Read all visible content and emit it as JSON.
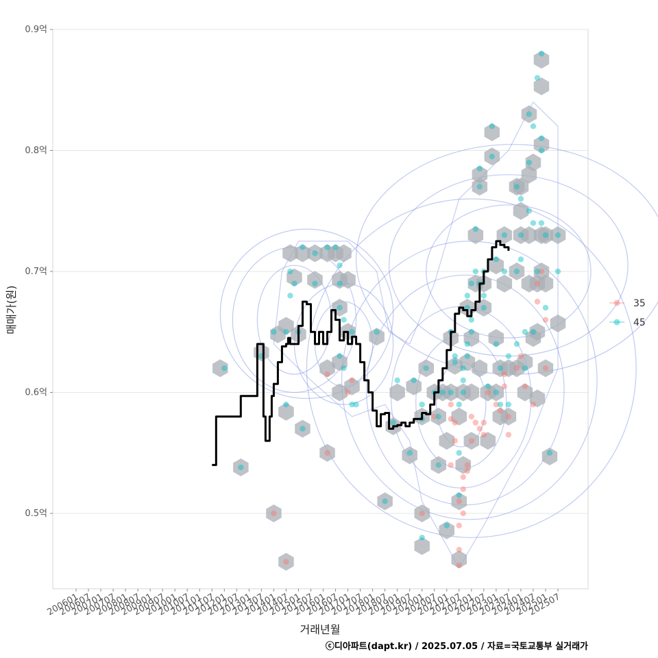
{
  "chart_data": {
    "type": "scatter",
    "xlabel": "거래년월",
    "ylabel": "매매가(원)",
    "caption": "ⓒ디아파트(dapt.kr) / 2025.07.05 / 자료=국토교통부 실거래가",
    "x_ticks": [
      "200601",
      "200607",
      "200701",
      "200707",
      "200801",
      "200807",
      "200901",
      "200907",
      "201001",
      "201007",
      "201101",
      "201107",
      "201201",
      "201207",
      "201301",
      "201307",
      "201401",
      "201407",
      "201501",
      "201507",
      "201601",
      "201607",
      "201701",
      "201707",
      "201801",
      "201807",
      "201901",
      "201907",
      "202001",
      "202007",
      "202101",
      "202107",
      "202201",
      "202207",
      "202301",
      "202307",
      "202401",
      "202407",
      "202501",
      "202507"
    ],
    "y_ticks": [
      0.5,
      0.6,
      0.7,
      0.8,
      0.9
    ],
    "y_tick_labels": [
      "0.5억",
      "0.6억",
      "0.7억",
      "0.8억",
      "0.9억"
    ],
    "ylim": [
      0.4535,
      0.9
    ],
    "grid": true,
    "legend": {
      "position": "right",
      "entries": [
        {
          "label": "35",
          "color": "#F8766D"
        },
        {
          "label": "45",
          "color": "#00BFC4"
        }
      ]
    },
    "colors": {
      "hexbin": "#A9AFB5",
      "contour": "#8C9EE6",
      "trend": "#000000"
    },
    "hexbins": [
      [
        201111,
        0.62
      ],
      [
        201209,
        0.538
      ],
      [
        201307,
        0.633
      ],
      [
        201401,
        0.5
      ],
      [
        201403,
        0.648
      ],
      [
        201407,
        0.46
      ],
      [
        201407,
        0.584
      ],
      [
        201407,
        0.655
      ],
      [
        201409,
        0.715
      ],
      [
        201411,
        0.695
      ],
      [
        201501,
        0.648
      ],
      [
        201503,
        0.715
      ],
      [
        201503,
        0.57
      ],
      [
        201509,
        0.693
      ],
      [
        201509,
        0.715
      ],
      [
        201603,
        0.55
      ],
      [
        201603,
        0.62
      ],
      [
        201603,
        0.715
      ],
      [
        201607,
        0.715
      ],
      [
        201609,
        0.693
      ],
      [
        201609,
        0.67
      ],
      [
        201609,
        0.6
      ],
      [
        201609,
        0.625
      ],
      [
        201611,
        0.715
      ],
      [
        201701,
        0.693
      ],
      [
        201701,
        0.65
      ],
      [
        201703,
        0.605
      ],
      [
        201803,
        0.646
      ],
      [
        201807,
        0.51
      ],
      [
        201811,
        0.572
      ],
      [
        201901,
        0.6
      ],
      [
        201907,
        0.548
      ],
      [
        201909,
        0.605
      ],
      [
        202001,
        0.473
      ],
      [
        202001,
        0.5
      ],
      [
        202001,
        0.58
      ],
      [
        202003,
        0.62
      ],
      [
        202007,
        0.6
      ],
      [
        202009,
        0.54
      ],
      [
        202009,
        0.58
      ],
      [
        202011,
        0.6
      ],
      [
        202101,
        0.486
      ],
      [
        202101,
        0.56
      ],
      [
        202103,
        0.6
      ],
      [
        202103,
        0.645
      ],
      [
        202105,
        0.622
      ],
      [
        202107,
        0.462
      ],
      [
        202107,
        0.51
      ],
      [
        202107,
        0.58
      ],
      [
        202109,
        0.54
      ],
      [
        202109,
        0.6
      ],
      [
        202111,
        0.625
      ],
      [
        202111,
        0.67
      ],
      [
        202201,
        0.56
      ],
      [
        202201,
        0.6
      ],
      [
        202201,
        0.645
      ],
      [
        202203,
        0.69
      ],
      [
        202203,
        0.73
      ],
      [
        202205,
        0.78
      ],
      [
        202205,
        0.77
      ],
      [
        202205,
        0.62
      ],
      [
        202207,
        0.69
      ],
      [
        202207,
        0.67
      ],
      [
        202209,
        0.56
      ],
      [
        202209,
        0.6
      ],
      [
        202211,
        0.795
      ],
      [
        202211,
        0.815
      ],
      [
        202301,
        0.705
      ],
      [
        202301,
        0.645
      ],
      [
        202301,
        0.6
      ],
      [
        202303,
        0.58
      ],
      [
        202303,
        0.62
      ],
      [
        202305,
        0.73
      ],
      [
        202305,
        0.69
      ],
      [
        202307,
        0.62
      ],
      [
        202307,
        0.58
      ],
      [
        202311,
        0.77
      ],
      [
        202311,
        0.7
      ],
      [
        202311,
        0.62
      ],
      [
        202401,
        0.73
      ],
      [
        202401,
        0.75
      ],
      [
        202401,
        0.77
      ],
      [
        202403,
        0.6
      ],
      [
        202403,
        0.625
      ],
      [
        202405,
        0.83
      ],
      [
        202405,
        0.78
      ],
      [
        202405,
        0.73
      ],
      [
        202405,
        0.69
      ],
      [
        202407,
        0.645
      ],
      [
        202407,
        0.79
      ],
      [
        202409,
        0.595
      ],
      [
        202409,
        0.65
      ],
      [
        202409,
        0.69
      ],
      [
        202411,
        0.875
      ],
      [
        202411,
        0.853
      ],
      [
        202411,
        0.805
      ],
      [
        202411,
        0.73
      ],
      [
        202411,
        0.7
      ],
      [
        202501,
        0.73
      ],
      [
        202501,
        0.69
      ],
      [
        202501,
        0.62
      ],
      [
        202503,
        0.547
      ],
      [
        202507,
        0.73
      ],
      [
        202507,
        0.657
      ]
    ],
    "series": [
      {
        "name": "35",
        "points": [
          [
            201401,
            0.5
          ],
          [
            201407,
            0.46
          ],
          [
            201603,
            0.55
          ],
          [
            201603,
            0.615
          ],
          [
            201701,
            0.6
          ],
          [
            201703,
            0.61
          ],
          [
            202001,
            0.5
          ],
          [
            202007,
            0.58
          ],
          [
            202103,
            0.59
          ],
          [
            202103,
            0.578
          ],
          [
            202105,
            0.56
          ],
          [
            202105,
            0.575
          ],
          [
            202107,
            0.47
          ],
          [
            202107,
            0.49
          ],
          [
            202107,
            0.457
          ],
          [
            202107,
            0.51
          ],
          [
            202109,
            0.53
          ],
          [
            202109,
            0.52
          ],
          [
            202109,
            0.5
          ],
          [
            202111,
            0.54
          ],
          [
            202111,
            0.535
          ],
          [
            202201,
            0.56
          ],
          [
            202203,
            0.575
          ],
          [
            202205,
            0.57
          ],
          [
            202207,
            0.565
          ],
          [
            202209,
            0.6
          ],
          [
            202301,
            0.59
          ],
          [
            202303,
            0.585
          ],
          [
            202305,
            0.615
          ],
          [
            202305,
            0.605
          ],
          [
            202307,
            0.58
          ],
          [
            202311,
            0.62
          ],
          [
            202401,
            0.63
          ],
          [
            202403,
            0.605
          ],
          [
            202407,
            0.59
          ],
          [
            202409,
            0.69
          ],
          [
            202409,
            0.675
          ],
          [
            202411,
            0.7
          ],
          [
            202501,
            0.66
          ],
          [
            202501,
            0.62
          ],
          [
            202307,
            0.565
          ],
          [
            202207,
            0.575
          ],
          [
            202201,
            0.58
          ],
          [
            202103,
            0.54
          ]
        ]
      },
      {
        "name": "45",
        "points": [
          [
            201201,
            0.62
          ],
          [
            201209,
            0.538
          ],
          [
            201307,
            0.63
          ],
          [
            201401,
            0.65
          ],
          [
            201407,
            0.59
          ],
          [
            201407,
            0.65
          ],
          [
            201409,
            0.7
          ],
          [
            201409,
            0.68
          ],
          [
            201411,
            0.69
          ],
          [
            201501,
            0.65
          ],
          [
            201503,
            0.72
          ],
          [
            201503,
            0.57
          ],
          [
            201509,
            0.69
          ],
          [
            201509,
            0.715
          ],
          [
            201603,
            0.72
          ],
          [
            201607,
            0.72
          ],
          [
            201609,
            0.705
          ],
          [
            201609,
            0.69
          ],
          [
            201609,
            0.67
          ],
          [
            201609,
            0.63
          ],
          [
            201611,
            0.66
          ],
          [
            201611,
            0.62
          ],
          [
            201703,
            0.65
          ],
          [
            201703,
            0.59
          ],
          [
            201705,
            0.59
          ],
          [
            201803,
            0.65
          ],
          [
            201807,
            0.51
          ],
          [
            201811,
            0.575
          ],
          [
            201901,
            0.61
          ],
          [
            201907,
            0.55
          ],
          [
            201909,
            0.61
          ],
          [
            202001,
            0.48
          ],
          [
            202001,
            0.59
          ],
          [
            202001,
            0.578
          ],
          [
            202003,
            0.62
          ],
          [
            202007,
            0.6
          ],
          [
            202009,
            0.54
          ],
          [
            202009,
            0.58
          ],
          [
            202011,
            0.6
          ],
          [
            202101,
            0.49
          ],
          [
            202103,
            0.6
          ],
          [
            202103,
            0.65
          ],
          [
            202105,
            0.625
          ],
          [
            202105,
            0.63
          ],
          [
            202107,
            0.515
          ],
          [
            202107,
            0.55
          ],
          [
            202107,
            0.59
          ],
          [
            202109,
            0.6
          ],
          [
            202109,
            0.61
          ],
          [
            202109,
            0.62
          ],
          [
            202111,
            0.63
          ],
          [
            202111,
            0.64
          ],
          [
            202111,
            0.67
          ],
          [
            202111,
            0.68
          ],
          [
            202201,
            0.66
          ],
          [
            202201,
            0.65
          ],
          [
            202201,
            0.69
          ],
          [
            202203,
            0.7
          ],
          [
            202203,
            0.735
          ],
          [
            202205,
            0.77
          ],
          [
            202205,
            0.785
          ],
          [
            202205,
            0.69
          ],
          [
            202207,
            0.7
          ],
          [
            202207,
            0.68
          ],
          [
            202207,
            0.67
          ],
          [
            202209,
            0.605
          ],
          [
            202211,
            0.795
          ],
          [
            202211,
            0.82
          ],
          [
            202301,
            0.71
          ],
          [
            202301,
            0.64
          ],
          [
            202301,
            0.6
          ],
          [
            202303,
            0.62
          ],
          [
            202303,
            0.59
          ],
          [
            202305,
            0.73
          ],
          [
            202305,
            0.7
          ],
          [
            202307,
            0.63
          ],
          [
            202307,
            0.59
          ],
          [
            202311,
            0.77
          ],
          [
            202311,
            0.7
          ],
          [
            202311,
            0.64
          ],
          [
            202401,
            0.76
          ],
          [
            202401,
            0.73
          ],
          [
            202401,
            0.71
          ],
          [
            202403,
            0.65
          ],
          [
            202403,
            0.62
          ],
          [
            202405,
            0.83
          ],
          [
            202405,
            0.79
          ],
          [
            202405,
            0.75
          ],
          [
            202407,
            0.82
          ],
          [
            202407,
            0.65
          ],
          [
            202407,
            0.74
          ],
          [
            202409,
            0.86
          ],
          [
            202409,
            0.7
          ],
          [
            202411,
            0.88
          ],
          [
            202411,
            0.81
          ],
          [
            202411,
            0.8
          ],
          [
            202411,
            0.74
          ],
          [
            202501,
            0.73
          ],
          [
            202501,
            0.67
          ],
          [
            202503,
            0.55
          ],
          [
            202507,
            0.73
          ],
          [
            202507,
            0.7
          ]
        ]
      }
    ],
    "trend_line": [
      [
        201107,
        0.54
      ],
      [
        201109,
        0.58
      ],
      [
        201201,
        0.58
      ],
      [
        201207,
        0.58
      ],
      [
        201209,
        0.597
      ],
      [
        201301,
        0.597
      ],
      [
        201303,
        0.597
      ],
      [
        201305,
        0.64
      ],
      [
        201307,
        0.64
      ],
      [
        201308,
        0.58
      ],
      [
        201309,
        0.56
      ],
      [
        201311,
        0.58
      ],
      [
        201312,
        0.597
      ],
      [
        201401,
        0.607
      ],
      [
        201403,
        0.625
      ],
      [
        201405,
        0.638
      ],
      [
        201407,
        0.64
      ],
      [
        201408,
        0.645
      ],
      [
        201409,
        0.64
      ],
      [
        201501,
        0.655
      ],
      [
        201503,
        0.675
      ],
      [
        201505,
        0.673
      ],
      [
        201507,
        0.65
      ],
      [
        201509,
        0.64
      ],
      [
        201511,
        0.65
      ],
      [
        201601,
        0.64
      ],
      [
        201603,
        0.65
      ],
      [
        201605,
        0.668
      ],
      [
        201607,
        0.66
      ],
      [
        201609,
        0.643
      ],
      [
        201611,
        0.65
      ],
      [
        201701,
        0.64
      ],
      [
        201703,
        0.646
      ],
      [
        201705,
        0.64
      ],
      [
        201707,
        0.625
      ],
      [
        201709,
        0.61
      ],
      [
        201711,
        0.6
      ],
      [
        201801,
        0.585
      ],
      [
        201803,
        0.572
      ],
      [
        201805,
        0.582
      ],
      [
        201807,
        0.583
      ],
      [
        201809,
        0.57
      ],
      [
        201811,
        0.572
      ],
      [
        201901,
        0.573
      ],
      [
        201903,
        0.575
      ],
      [
        201905,
        0.572
      ],
      [
        201907,
        0.575
      ],
      [
        201909,
        0.578
      ],
      [
        202001,
        0.583
      ],
      [
        202003,
        0.582
      ],
      [
        202005,
        0.59
      ],
      [
        202007,
        0.6
      ],
      [
        202009,
        0.61
      ],
      [
        202011,
        0.62
      ],
      [
        202101,
        0.635
      ],
      [
        202103,
        0.65
      ],
      [
        202105,
        0.665
      ],
      [
        202107,
        0.67
      ],
      [
        202109,
        0.668
      ],
      [
        202111,
        0.663
      ],
      [
        202201,
        0.668
      ],
      [
        202203,
        0.675
      ],
      [
        202205,
        0.69
      ],
      [
        202207,
        0.7
      ],
      [
        202209,
        0.71
      ],
      [
        202211,
        0.72
      ],
      [
        202301,
        0.725
      ],
      [
        202303,
        0.722
      ],
      [
        202305,
        0.72
      ],
      [
        202307,
        0.717
      ]
    ]
  }
}
